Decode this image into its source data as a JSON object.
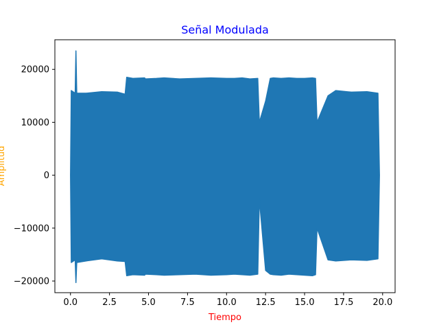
{
  "chart_data": {
    "type": "line",
    "title": "Señal Modulada",
    "xlabel": "Tiempo",
    "ylabel": "Amplitud",
    "title_color": "#0000ff",
    "xlabel_color": "#ff0000",
    "ylabel_color": "#ffa500",
    "line_color": "#1f77b4",
    "xlim": [
      -1.0,
      20.8
    ],
    "ylim": [
      -22200,
      25600
    ],
    "xticks": [
      0.0,
      2.5,
      5.0,
      7.5,
      10.0,
      12.5,
      15.0,
      17.5,
      20.0
    ],
    "xtick_labels": [
      "0.0",
      "2.5",
      "5.0",
      "7.5",
      "10.0",
      "12.5",
      "15.0",
      "17.5",
      "20.0"
    ],
    "yticks": [
      -20000,
      -10000,
      0,
      10000,
      20000
    ],
    "ytick_labels": [
      "−20000",
      "−10000",
      "0",
      "10000",
      "20000"
    ],
    "grid": false,
    "legend": "none",
    "series": [
      {
        "x": [
          0.0,
          0.05,
          0.3,
          0.35,
          0.4,
          1.0,
          2.0,
          3.0,
          3.5,
          3.6,
          4.0,
          4.75,
          4.8,
          5.5,
          6.0,
          7.0,
          8.0,
          9.0,
          10.0,
          10.5,
          11.0,
          11.5,
          12.0,
          12.1,
          12.5,
          12.8,
          13.0,
          13.5,
          14.0,
          14.5,
          15.0,
          15.5,
          15.7,
          15.8,
          16.5,
          17.0,
          18.0,
          19.0,
          19.7,
          19.8
        ],
        "upper": [
          0,
          16000,
          15500,
          23500,
          15500,
          15500,
          15800,
          15700,
          15300,
          18500,
          18300,
          18400,
          18200,
          18300,
          18400,
          18200,
          18300,
          18400,
          18300,
          18300,
          18400,
          18200,
          18300,
          10000,
          14000,
          18300,
          18400,
          18300,
          18400,
          18300,
          18300,
          18400,
          18300,
          10000,
          15000,
          16000,
          15700,
          15800,
          15500,
          0
        ],
        "lower": [
          0,
          -16500,
          -16000,
          -20300,
          -16500,
          -16200,
          -15800,
          -16200,
          -16300,
          -19000,
          -18800,
          -18900,
          -18700,
          -18800,
          -18900,
          -18800,
          -18700,
          -18900,
          -18800,
          -18700,
          -18800,
          -18900,
          -18700,
          -4500,
          -18000,
          -18700,
          -18800,
          -18900,
          -18700,
          -18800,
          -18900,
          -19000,
          -18800,
          -10000,
          -16000,
          -16200,
          -16000,
          -16100,
          -15800,
          0
        ]
      }
    ]
  }
}
